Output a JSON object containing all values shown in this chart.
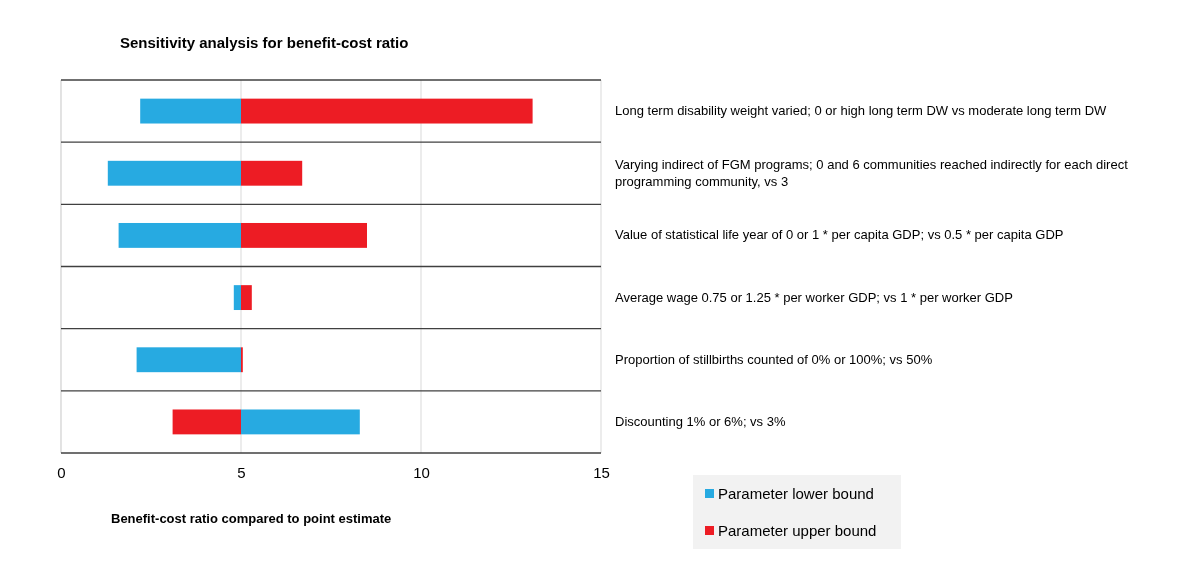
{
  "chart_data": {
    "type": "bar",
    "orientation": "horizontal",
    "title": "Sensitivity analysis for benefit-cost ratio",
    "xlabel": "Benefit-cost ratio compared to point estimate",
    "categories": [
      "Long term disability weight varied; 0 or high long term DW vs moderate long term DW",
      "Varying indirect of FGM programs; 0 and 6 communities reached indirectly for each direct programming community, vs 3",
      "Value of statistical life year of 0 or 1 * per capita GDP; vs 0.5 * per capita GDP",
      "Average wage 0.75 or 1.25 * per worker GDP; vs 1 * per worker GDP",
      "Proportion of stillbirths counted of 0% or 100%; vs 50%",
      "Discounting 1% or 6%; vs 3%"
    ],
    "series": [
      {
        "name": "Parameter lower bound",
        "color": "#27aae1",
        "base": [
          2.2,
          1.3,
          1.6,
          4.8,
          2.1,
          5
        ],
        "values": [
          2.8,
          3.7,
          3.4,
          0.2,
          2.9,
          3.3
        ]
      },
      {
        "name": "Parameter upper bound",
        "color": "#ed1c24",
        "base": [
          5,
          5,
          5,
          5,
          5,
          3.1
        ],
        "values": [
          8.1,
          1.7,
          3.5,
          0.3,
          0.05,
          1.9
        ]
      }
    ],
    "xlim": [
      0,
      15
    ],
    "xticks": [
      0,
      5,
      10,
      15
    ],
    "grid": "x",
    "legend": "bottom"
  }
}
